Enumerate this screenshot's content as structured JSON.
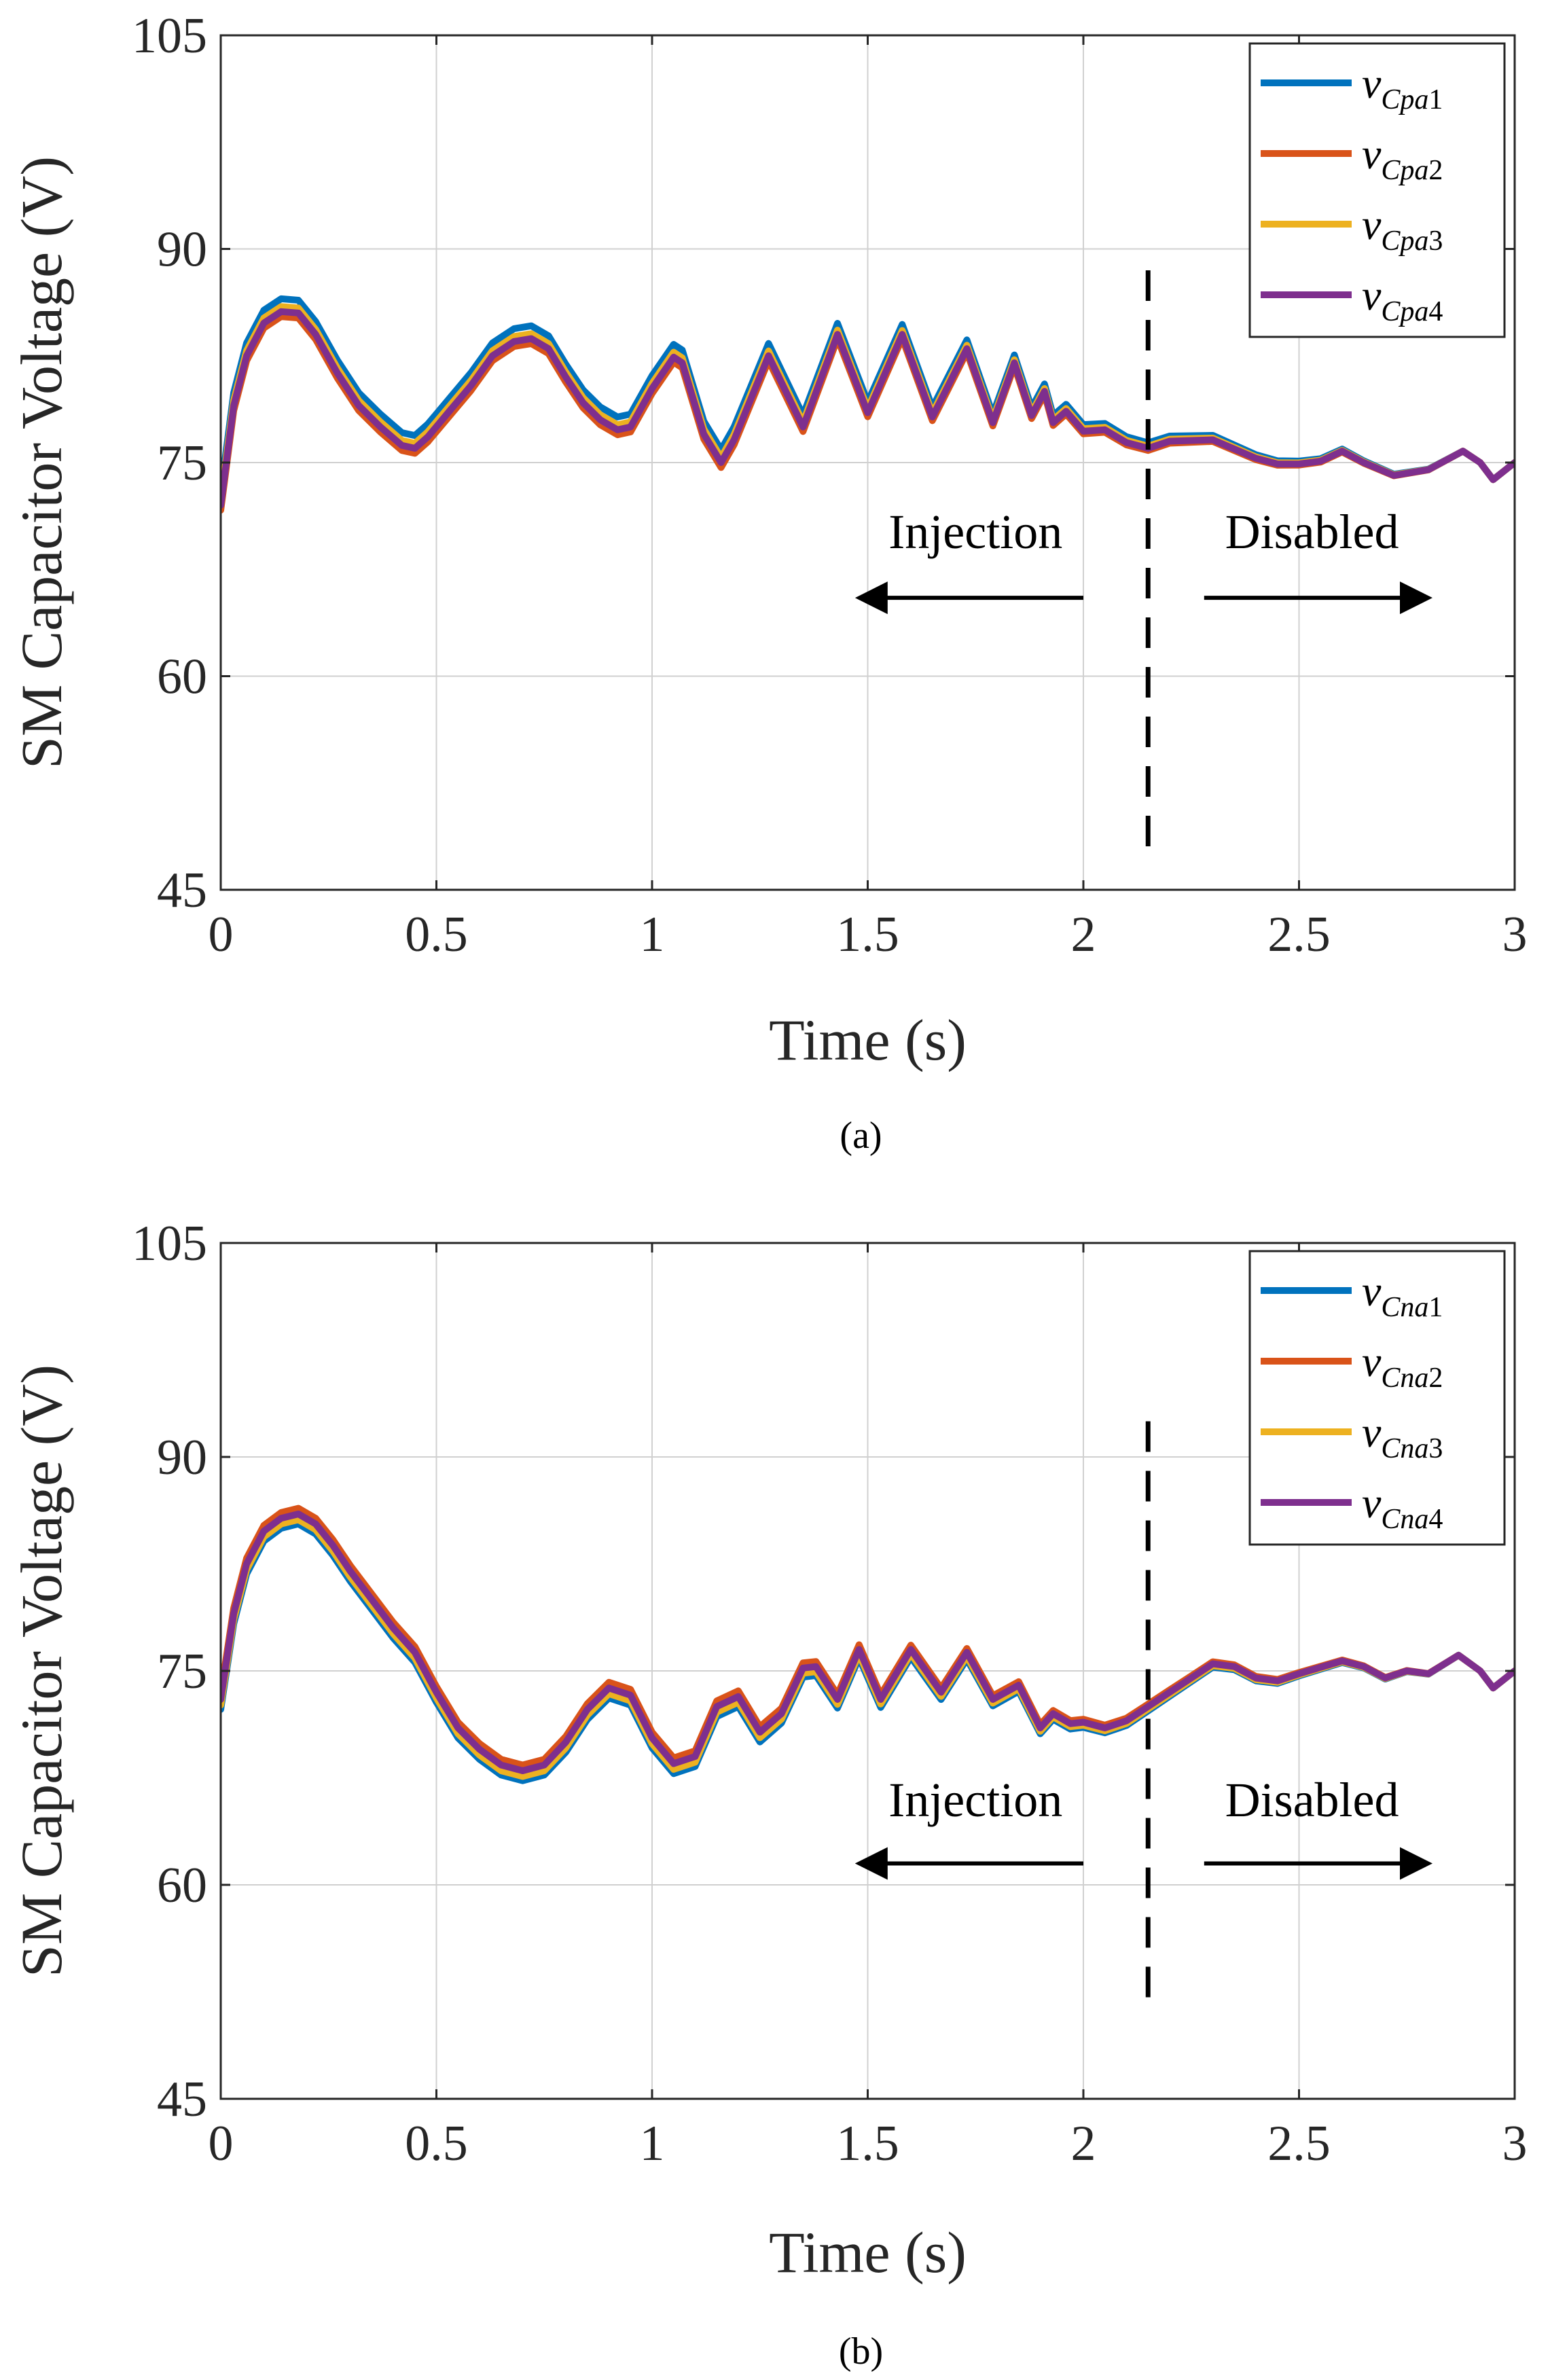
{
  "chart_data": [
    {
      "type": "line",
      "caption": "(a)",
      "xlabel": "Time (s)",
      "ylabel": "SM Capacitor Voltage (V)",
      "xlim": [
        0,
        3
      ],
      "ylim": [
        45,
        105
      ],
      "xticks": [
        0,
        0.5,
        1,
        1.5,
        2,
        2.5,
        3
      ],
      "xtick_labels": [
        "0",
        "0.5",
        "1",
        "1.5",
        "2",
        "2.5",
        "3"
      ],
      "yticks": [
        45,
        60,
        75,
        90,
        105
      ],
      "ytick_labels": [
        "45",
        "60",
        "75",
        "90",
        "105"
      ],
      "grid": true,
      "legend_position": "top-right",
      "divider_x": 2.15,
      "annotations": [
        {
          "text": "Injection",
          "x": 1.75,
          "y": 69,
          "arrow_from": 2.0,
          "arrow_to": 1.48,
          "arrow_y": 65.5
        },
        {
          "text": "Disabled",
          "x": 2.53,
          "y": 69,
          "arrow_from": 2.28,
          "arrow_to": 2.8,
          "arrow_y": 65.5
        }
      ],
      "series": [
        {
          "name": "Cpa1",
          "color": "#0072BD",
          "offset": 0.9
        },
        {
          "name": "Cpa2",
          "color": "#D95319",
          "offset": -0.35
        },
        {
          "name": "Cpa3",
          "color": "#EDB120",
          "offset": 0.35
        },
        {
          "name": "Cpa4",
          "color": "#7E2F8E",
          "offset": 0
        }
      ],
      "base_curve": {
        "x": [
          0,
          0.03,
          0.06,
          0.1,
          0.14,
          0.18,
          0.22,
          0.27,
          0.32,
          0.37,
          0.42,
          0.45,
          0.48,
          0.53,
          0.58,
          0.63,
          0.68,
          0.72,
          0.76,
          0.8,
          0.84,
          0.88,
          0.92,
          0.95,
          1.0,
          1.05,
          1.07,
          1.12,
          1.16,
          1.19,
          1.27,
          1.35,
          1.43,
          1.5,
          1.58,
          1.65,
          1.73,
          1.79,
          1.84,
          1.88,
          1.91,
          1.93,
          1.96,
          2.0,
          2.05,
          2.1,
          2.15,
          2.2,
          2.3,
          2.4,
          2.45,
          2.5,
          2.55,
          2.6,
          2.65,
          2.72,
          2.8,
          2.88,
          2.92,
          2.95,
          3.0
        ],
        "y": [
          72,
          79,
          82.5,
          84.8,
          85.6,
          85.5,
          84,
          81.3,
          79,
          77.5,
          76.2,
          76,
          76.8,
          78.6,
          80.4,
          82.5,
          83.5,
          83.7,
          83,
          81,
          79.2,
          78,
          77.3,
          77.5,
          80.2,
          82.4,
          82,
          77,
          75,
          76.6,
          82.5,
          77.5,
          84,
          78.5,
          84,
          78.2,
          83,
          77.8,
          82,
          78.3,
          80,
          77.8,
          78.6,
          77.2,
          77.3,
          76.4,
          76,
          76.5,
          76.6,
          75.3,
          74.9,
          74.9,
          75.1,
          75.8,
          75,
          74.1,
          74.5,
          75.8,
          75,
          73.8,
          75
        ]
      }
    },
    {
      "type": "line",
      "caption": "(b)",
      "xlabel": "Time (s)",
      "ylabel": "SM Capacitor Voltage (V)",
      "xlim": [
        0,
        3
      ],
      "ylim": [
        45,
        105
      ],
      "xticks": [
        0,
        0.5,
        1,
        1.5,
        2,
        2.5,
        3
      ],
      "xtick_labels": [
        "0",
        "0.5",
        "1",
        "1.5",
        "2",
        "2.5",
        "3"
      ],
      "yticks": [
        45,
        60,
        75,
        90,
        105
      ],
      "ytick_labels": [
        "45",
        "60",
        "75",
        "90",
        "105"
      ],
      "grid": true,
      "legend_position": "top-right",
      "divider_x": 2.15,
      "annotations": [
        {
          "text": "Injection",
          "x": 1.75,
          "y": 64.8,
          "arrow_from": 2.0,
          "arrow_to": 1.48,
          "arrow_y": 61.5
        },
        {
          "text": "Disabled",
          "x": 2.53,
          "y": 64.8,
          "arrow_from": 2.28,
          "arrow_to": 2.8,
          "arrow_y": 61.5
        }
      ],
      "series": [
        {
          "name": "Cna1",
          "color": "#0072BD",
          "offset": -0.7
        },
        {
          "name": "Cna2",
          "color": "#D95319",
          "offset": 0.4
        },
        {
          "name": "Cna3",
          "color": "#EDB120",
          "offset": -0.4
        },
        {
          "name": "Cna4",
          "color": "#7E2F8E",
          "offset": 0
        }
      ],
      "base_curve": {
        "x": [
          0,
          0.03,
          0.06,
          0.1,
          0.14,
          0.18,
          0.22,
          0.26,
          0.3,
          0.35,
          0.4,
          0.45,
          0.5,
          0.55,
          0.6,
          0.65,
          0.7,
          0.75,
          0.8,
          0.85,
          0.9,
          0.95,
          1.0,
          1.05,
          1.1,
          1.15,
          1.2,
          1.25,
          1.3,
          1.35,
          1.38,
          1.43,
          1.48,
          1.53,
          1.6,
          1.67,
          1.73,
          1.79,
          1.85,
          1.9,
          1.93,
          1.97,
          2.0,
          2.05,
          2.1,
          2.15,
          2.2,
          2.25,
          2.3,
          2.35,
          2.4,
          2.45,
          2.5,
          2.6,
          2.65,
          2.7,
          2.75,
          2.8,
          2.87,
          2.92,
          2.95,
          3.0
        ],
        "y": [
          73,
          79,
          82.5,
          84.8,
          85.7,
          86,
          85.3,
          83.8,
          82,
          80,
          78,
          76.3,
          73.5,
          71,
          69.5,
          68.4,
          68,
          68.4,
          70,
          72.3,
          73.8,
          73.3,
          70.3,
          68.5,
          69,
          72.5,
          73.2,
          70.7,
          72,
          75.2,
          75.3,
          73,
          76.5,
          73,
          76.5,
          73.5,
          76.3,
          73,
          74,
          71,
          72,
          71.3,
          71.4,
          71,
          71.5,
          72.5,
          73.5,
          74.5,
          75.5,
          75.3,
          74.5,
          74.3,
          74.8,
          75.7,
          75.3,
          74.5,
          75,
          74.8,
          76.1,
          75,
          73.8,
          75
        ]
      }
    }
  ]
}
